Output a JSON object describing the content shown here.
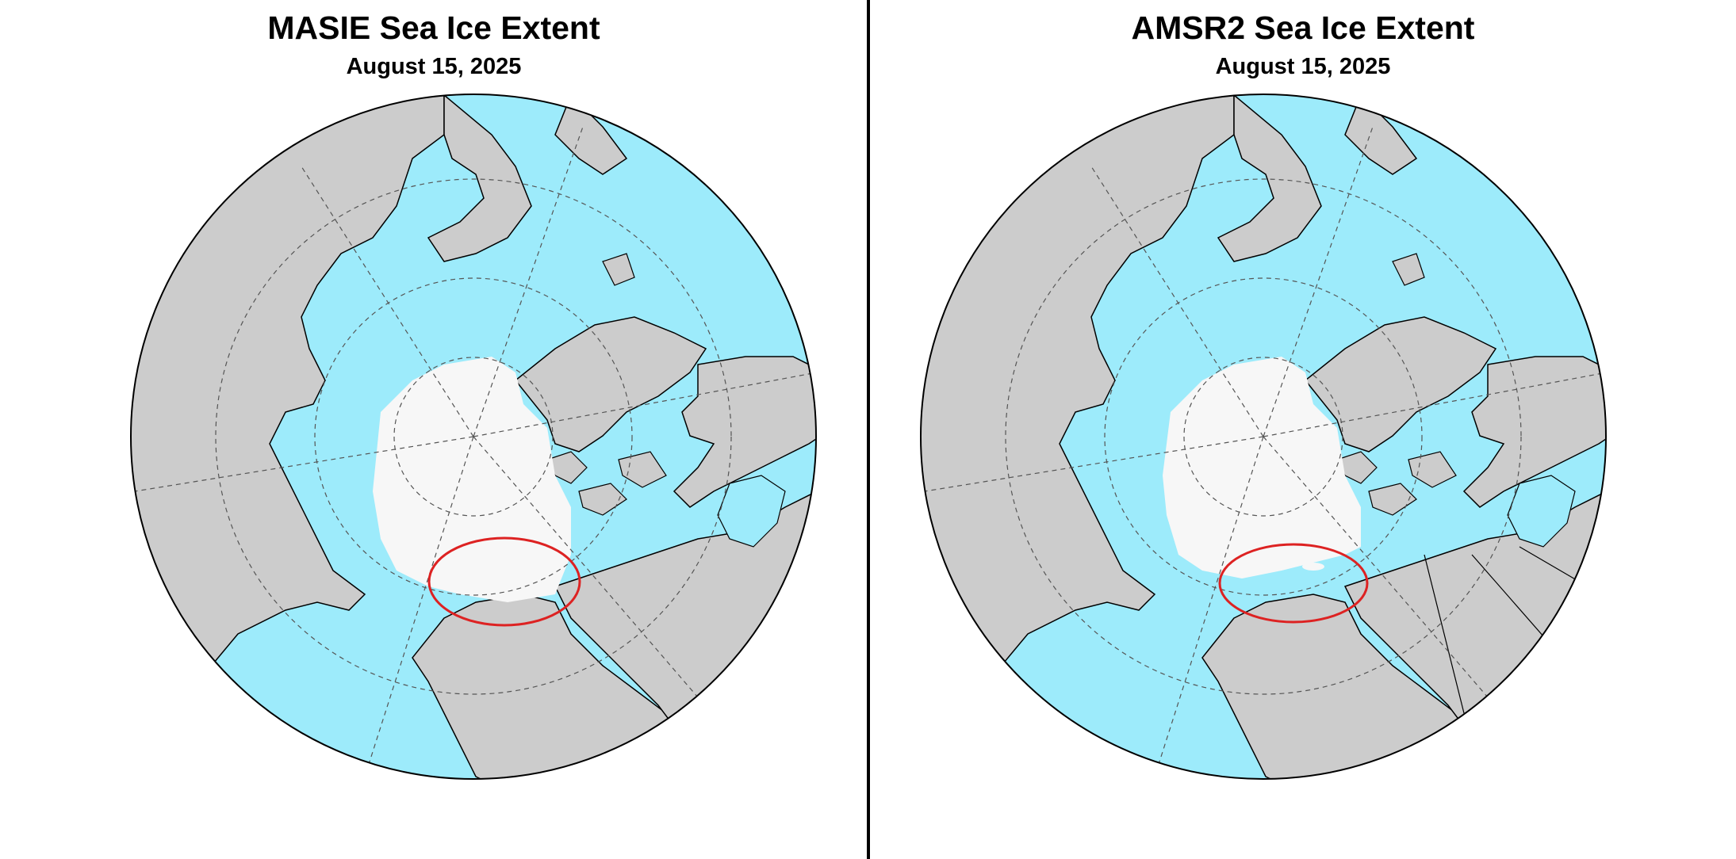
{
  "colors": {
    "land": "#cccccc",
    "ocean": "#9debfb",
    "sea_ice": "#f7f7f7",
    "highlight": "#dd2222",
    "outline": "#000000"
  },
  "panels": [
    {
      "title": "MASIE Sea Ice Extent",
      "date": "August 15, 2025",
      "highlight_shape": "ellipse"
    },
    {
      "title": "AMSR2 Sea Ice Extent",
      "date": "August 15, 2025",
      "highlight_shape": "ellipse"
    }
  ]
}
